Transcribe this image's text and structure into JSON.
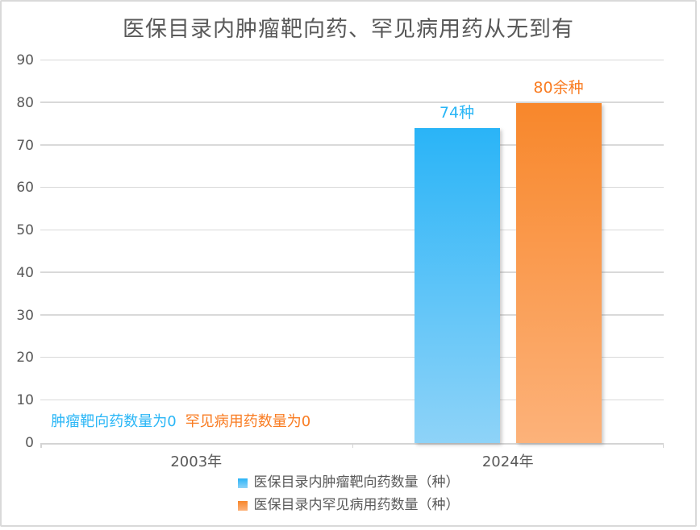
{
  "chart_data": {
    "type": "bar",
    "title": "医保目录内肿瘤靶向药、罕见病用药从无到有",
    "categories": [
      "2003年",
      "2024年"
    ],
    "series": [
      {
        "name": "医保目录内肿瘤靶向药数量（种）",
        "values": [
          0,
          74
        ],
        "data_labels": [
          "",
          "74种"
        ],
        "color_top": "#2ab4f7",
        "color_bottom": "#8ed3f8",
        "label_color": "#29b6f6"
      },
      {
        "name": "医保目录内罕见病用药数量（种）",
        "values": [
          0,
          80
        ],
        "data_labels": [
          "",
          "80余种"
        ],
        "color_top": "#f8872b",
        "color_bottom": "#fcb27a",
        "label_color": "#f97c22"
      }
    ],
    "annotations": [
      {
        "text": "肿瘤靶向药数量为0",
        "color": "#29b6f6",
        "category_index": 0
      },
      {
        "text": "罕见病用药数量为0",
        "color": "#f97c22",
        "category_index": 0
      }
    ],
    "ylim": [
      0,
      90
    ],
    "yticks": [
      0,
      10,
      20,
      30,
      40,
      50,
      60,
      70,
      80,
      90
    ],
    "grid": true,
    "legend_position": "bottom",
    "text_color": "#595959",
    "gridline_color": "#d9d9d9",
    "axis_color": "#d4d4d4"
  }
}
